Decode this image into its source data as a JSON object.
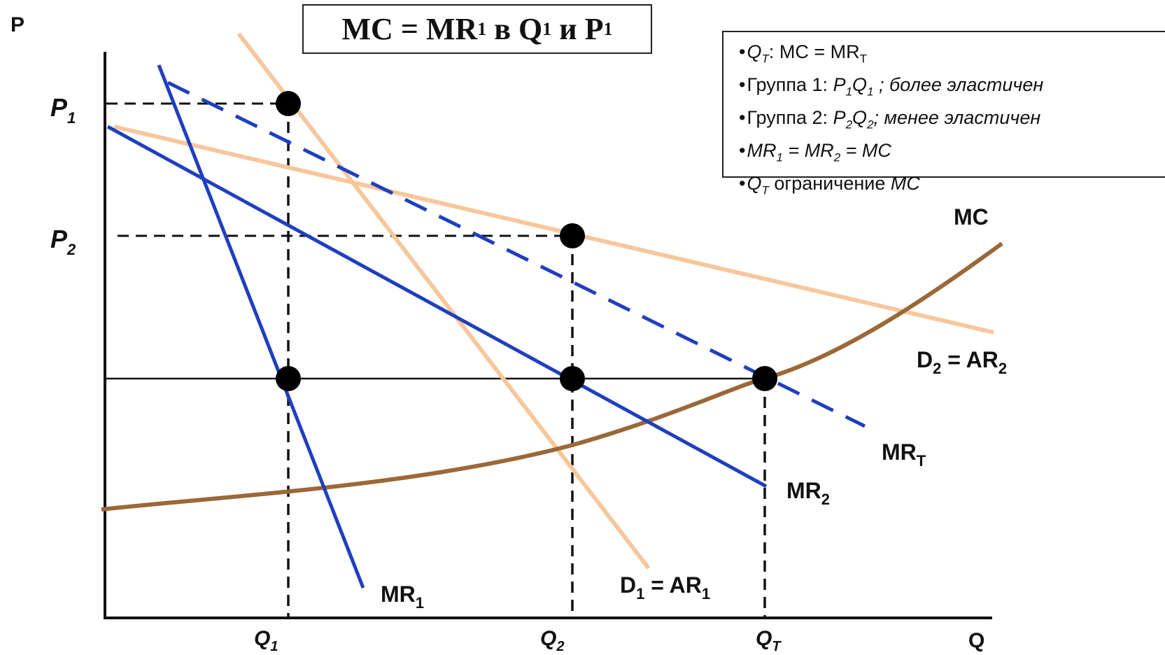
{
  "title": {
    "prefix": "MC = MR",
    "prefix_sub": "1",
    "middle": " в Q",
    "middle_sub": "1",
    "suffix": " и P",
    "suffix_sub": "1"
  },
  "legend": {
    "items": [
      {
        "text": "Q_T: MC = MR_T"
      },
      {
        "text": "Группа 1: P_1Q_1 ; более эластичен"
      },
      {
        "text": "Группа 2: P_2Q_2; менее эластичен"
      },
      {
        "text": "MR_1 = MR_2 = MC"
      },
      {
        "text": "Q_T ограничение MC"
      }
    ],
    "item_labels": {
      "i1_a": "Q",
      "i1_a_sub": "T",
      "i1_b": ": MC = MR",
      "i1_b_sub": "T",
      "i2_a": "Группа 1: ",
      "i2_b": "P",
      "i2_b_sub": "1",
      "i2_c": "Q",
      "i2_c_sub": "1",
      "i2_d": " ; более эластичен",
      "i3_a": "Группа 2: ",
      "i3_b": "P",
      "i3_b_sub": "2",
      "i3_c": "Q",
      "i3_c_sub": "2",
      "i3_d": "; менее эластичен",
      "i4_a": "MR",
      "i4_a_sub": "1",
      "i4_b": " = MR",
      "i4_b_sub": "2",
      "i4_c": " = MC",
      "i5_a": "Q",
      "i5_a_sub": "T",
      "i5_b": " ограничение ",
      "i5_c": "MC"
    }
  },
  "axes": {
    "y_label": "P",
    "x_label": "Q",
    "y_ticks": [
      {
        "main": "P",
        "sub": "1"
      },
      {
        "main": "P",
        "sub": "2"
      }
    ],
    "x_ticks": [
      {
        "main": "Q",
        "sub": "1"
      },
      {
        "main": "Q",
        "sub": "2"
      },
      {
        "main": "Q",
        "sub": "T"
      }
    ]
  },
  "curves": {
    "mc": {
      "label": "MC",
      "color": "#9b6838"
    },
    "d2": {
      "label": "D",
      "sub": "2",
      "label2": " = AR",
      "sub2": "2",
      "color": "#f7c79b"
    },
    "d1": {
      "label": "D",
      "sub": "1",
      "label2": " = AR",
      "sub2": "1",
      "color": "#f7c79b"
    },
    "mrt": {
      "label": "MR",
      "sub": "T",
      "color": "#1f3fbf"
    },
    "mr2": {
      "label": "MR",
      "sub": "2",
      "color": "#1f3fbf"
    },
    "mr1": {
      "label": "MR",
      "sub": "1",
      "color": "#1f3fbf"
    }
  }
}
